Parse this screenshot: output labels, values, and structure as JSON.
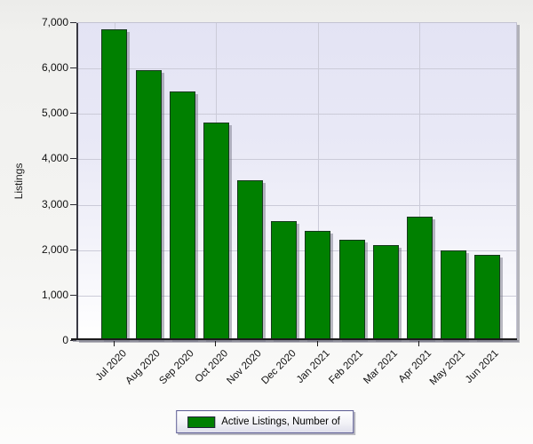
{
  "chart_data": {
    "type": "bar",
    "title": "",
    "xlabel": "",
    "ylabel": "Listings",
    "categories": [
      "Jul 2020",
      "Aug 2020",
      "Sep 2020",
      "Oct 2020",
      "Nov 2020",
      "Dec 2020",
      "Jan 2021",
      "Feb 2021",
      "Mar 2021",
      "Apr 2021",
      "May 2021",
      "Jun 2021"
    ],
    "series": [
      {
        "name": "Active Listings, Number of",
        "values": [
          6820,
          5930,
          5460,
          4770,
          3500,
          2610,
          2380,
          2200,
          2080,
          2700,
          1960,
          1850
        ]
      }
    ],
    "ylim": [
      0,
      7000
    ],
    "ytick_values": [
      0,
      1000,
      2000,
      3000,
      4000,
      5000,
      6000,
      7000
    ],
    "ytick_labels": [
      "0",
      "1,000",
      "2,000",
      "3,000",
      "4,000",
      "5,000",
      "6,000",
      "7,000"
    ],
    "xtick_interval": 3,
    "xtick_indices": [
      0,
      3,
      6,
      9
    ],
    "grid": "horizontal every 1000, vertical every 3 categories",
    "legend_position": "bottom-center",
    "bar_color": "#008000",
    "bar_border_color": "#16391d",
    "plot_bg_top_color": "#e3e3f4",
    "plot_bg_bottom_color": "#ffffff"
  },
  "legend": {
    "label": "Active Listings,  Number of"
  }
}
